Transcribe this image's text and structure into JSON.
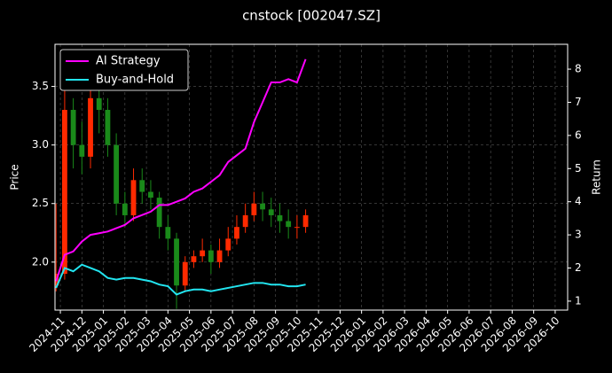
{
  "chart_data": {
    "type": "candlestick",
    "title": "cnstock [002047.SZ]",
    "ylabel": "Price",
    "y2label": "Return",
    "x": [
      -0.2,
      0.2,
      0.6,
      1.0,
      1.4,
      1.8,
      2.2,
      2.6,
      3.0,
      3.4,
      3.8,
      4.2,
      4.6,
      5.0,
      5.4,
      5.8,
      6.2,
      6.6,
      7.0,
      7.4,
      7.8,
      8.2,
      8.6,
      9.0,
      9.4,
      9.8,
      10.2,
      10.6,
      11.0,
      11.4
    ],
    "open": [
      1.8,
      1.9,
      3.3,
      3.0,
      2.9,
      3.4,
      3.3,
      3.0,
      2.5,
      2.4,
      2.7,
      2.6,
      2.55,
      2.3,
      2.2,
      1.8,
      2.0,
      2.05,
      2.1,
      2.0,
      2.1,
      2.2,
      2.3,
      2.4,
      2.5,
      2.45,
      2.4,
      2.35,
      2.3,
      2.3
    ],
    "high": [
      2.5,
      3.6,
      3.4,
      3.2,
      3.5,
      3.5,
      3.4,
      3.1,
      2.6,
      2.8,
      2.8,
      2.7,
      2.6,
      2.4,
      2.25,
      2.05,
      2.1,
      2.2,
      2.15,
      2.2,
      2.3,
      2.4,
      2.5,
      2.6,
      2.6,
      2.55,
      2.5,
      2.45,
      2.4,
      2.45
    ],
    "low": [
      1.75,
      1.85,
      2.8,
      2.75,
      2.8,
      3.1,
      2.9,
      2.4,
      2.3,
      2.35,
      2.5,
      2.45,
      2.2,
      2.1,
      1.6,
      1.75,
      1.95,
      2.0,
      1.9,
      1.95,
      2.05,
      2.15,
      2.25,
      2.35,
      2.35,
      2.3,
      2.25,
      2.2,
      2.2,
      2.25
    ],
    "close": [
      1.9,
      3.3,
      3.0,
      2.9,
      3.4,
      3.3,
      3.0,
      2.5,
      2.4,
      2.7,
      2.6,
      2.55,
      2.3,
      2.2,
      1.8,
      2.0,
      2.05,
      2.1,
      2.0,
      2.1,
      2.2,
      2.3,
      2.4,
      2.5,
      2.45,
      2.4,
      2.35,
      2.3,
      2.3,
      2.4
    ],
    "up_color": "#ff2a00",
    "down_color": "#1a8a1a",
    "series": [
      {
        "name": "AI Strategy",
        "color": "#ff00ff",
        "axis": "y2",
        "values": [
          1.6,
          2.4,
          2.5,
          2.8,
          3.0,
          3.05,
          3.1,
          3.2,
          3.3,
          3.5,
          3.6,
          3.7,
          3.9,
          3.9,
          4.0,
          4.1,
          4.3,
          4.4,
          4.6,
          4.8,
          5.2,
          5.4,
          5.6,
          6.4,
          7.0,
          7.6,
          7.6,
          7.7,
          7.6,
          8.3
        ]
      },
      {
        "name": "Buy-and-Hold",
        "color": "#22e5f0",
        "axis": "y2",
        "values": [
          1.4,
          2.0,
          1.9,
          2.1,
          2.0,
          1.9,
          1.7,
          1.65,
          1.7,
          1.7,
          1.65,
          1.6,
          1.5,
          1.45,
          1.2,
          1.3,
          1.35,
          1.35,
          1.3,
          1.35,
          1.4,
          1.45,
          1.5,
          1.55,
          1.55,
          1.5,
          1.5,
          1.45,
          1.45,
          1.5
        ]
      }
    ],
    "xlim": [
      -0.25,
      23.58
    ],
    "xticks": [
      {
        "value": 0,
        "label": "2024-11"
      },
      {
        "value": 1,
        "label": "2024-12"
      },
      {
        "value": 2,
        "label": "2025-01"
      },
      {
        "value": 3,
        "label": "2025-02"
      },
      {
        "value": 4,
        "label": "2025-03"
      },
      {
        "value": 5,
        "label": "2025-04"
      },
      {
        "value": 6,
        "label": "2025-05"
      },
      {
        "value": 7,
        "label": "2025-06"
      },
      {
        "value": 8,
        "label": "2025-07"
      },
      {
        "value": 9,
        "label": "2025-08"
      },
      {
        "value": 10,
        "label": "2025-09"
      },
      {
        "value": 11,
        "label": "2025-10"
      },
      {
        "value": 12,
        "label": "2025-11"
      },
      {
        "value": 13,
        "label": "2025-12"
      },
      {
        "value": 14,
        "label": "2026-01"
      },
      {
        "value": 15,
        "label": "2026-02"
      },
      {
        "value": 16,
        "label": "2026-03"
      },
      {
        "value": 17,
        "label": "2026-04"
      },
      {
        "value": 18,
        "label": "2026-05"
      },
      {
        "value": 19,
        "label": "2026-06"
      },
      {
        "value": 20,
        "label": "2026-07"
      },
      {
        "value": 21,
        "label": "2026-08"
      },
      {
        "value": 22,
        "label": "2026-09"
      },
      {
        "value": 23,
        "label": "2026-10"
      }
    ],
    "ylim": [
      1.59,
      3.86
    ],
    "yticks": [
      {
        "value": 2,
        "label": "2.0"
      },
      2.5,
      {
        "value": 3,
        "label": "3.0"
      },
      3.5
    ],
    "y2lim": [
      0.73,
      8.75
    ],
    "y2ticks": [
      1,
      2,
      3,
      4,
      5,
      6,
      7,
      8
    ],
    "grid": true,
    "legend": "upper left"
  }
}
